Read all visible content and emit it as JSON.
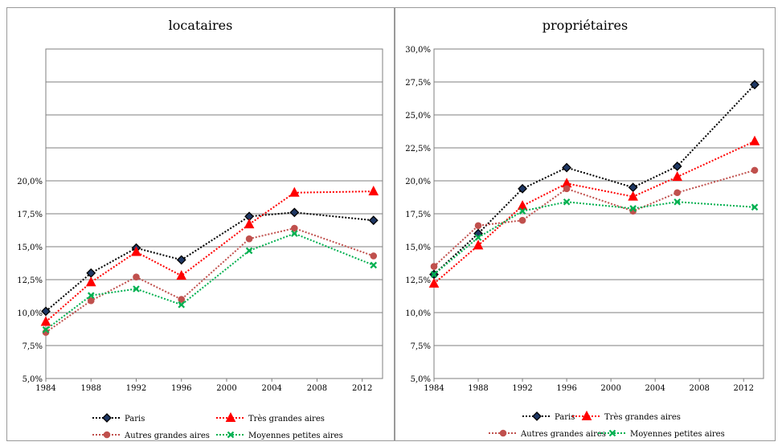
{
  "chart_data": [
    {
      "type": "line",
      "title": "locataires",
      "x": [
        1984,
        1988,
        1992,
        1996,
        2002,
        2006,
        2013
      ],
      "xticks": [
        "1984",
        "1988",
        "1992",
        "1996",
        "2000",
        "2004",
        "2008",
        "2012"
      ],
      "xlim": [
        1984,
        2013.8
      ],
      "ylim": [
        5,
        30
      ],
      "yticks": [
        "5,0%",
        "7,5%",
        "10,0%",
        "12,5%",
        "15,0%",
        "17,5%",
        "20,0%"
      ],
      "ytick_values": [
        5,
        7.5,
        10,
        12.5,
        15,
        17.5,
        20
      ],
      "gridlines": [
        5,
        7.5,
        10,
        12.5,
        15,
        17.5,
        20,
        22.5,
        25,
        27.5,
        30
      ],
      "legend_position": "bottom",
      "series": [
        {
          "name": "Paris",
          "color": "#000000",
          "marker": "diamond",
          "values": [
            10.1,
            13.0,
            14.9,
            14.0,
            17.3,
            17.6,
            17.0
          ]
        },
        {
          "name": "Très grandes aires",
          "color": "#ff0000",
          "marker": "triangle",
          "values": [
            9.3,
            12.3,
            14.6,
            12.8,
            16.7,
            19.1,
            19.2
          ]
        },
        {
          "name": "Autres grandes aires",
          "color": "#c0504d",
          "marker": "circle",
          "values": [
            8.5,
            10.9,
            12.7,
            11.0,
            15.6,
            16.4,
            14.3
          ]
        },
        {
          "name": "Moyennes petites aires",
          "color": "#00b050",
          "marker": "x",
          "values": [
            8.7,
            11.3,
            11.8,
            10.6,
            14.7,
            16.0,
            13.6
          ]
        }
      ]
    },
    {
      "type": "line",
      "title": "propriétaires",
      "x": [
        1984,
        1988,
        1992,
        1996,
        2002,
        2006,
        2013
      ],
      "xticks": [
        "1984",
        "1988",
        "1992",
        "1996",
        "2000",
        "2004",
        "2008",
        "2012"
      ],
      "xlim": [
        1984,
        2013.8
      ],
      "ylim": [
        5,
        30
      ],
      "yticks": [
        "5,0%",
        "7,5%",
        "10,0%",
        "12,5%",
        "15,0%",
        "17,5%",
        "20,0%",
        "22,5%",
        "25,0%",
        "27,5%",
        "30,0%"
      ],
      "ytick_values": [
        5,
        7.5,
        10,
        12.5,
        15,
        17.5,
        20,
        22.5,
        25,
        27.5,
        30
      ],
      "gridlines": [
        5,
        7.5,
        10,
        12.5,
        15,
        17.5,
        20,
        22.5,
        25,
        27.5,
        30
      ],
      "legend_position": "bottom",
      "series": [
        {
          "name": "Paris",
          "color": "#000000",
          "marker": "diamond",
          "values": [
            12.9,
            16.0,
            19.4,
            21.0,
            19.5,
            21.1,
            27.3
          ]
        },
        {
          "name": "Très grandes aires",
          "color": "#ff0000",
          "marker": "triangle",
          "values": [
            12.2,
            15.1,
            18.1,
            19.8,
            18.8,
            20.3,
            23.0
          ]
        },
        {
          "name": "Autres grandes aires",
          "color": "#c0504d",
          "marker": "circle",
          "values": [
            13.5,
            16.6,
            17.0,
            19.4,
            17.7,
            19.1,
            20.8
          ]
        },
        {
          "name": "Moyennes petites aires",
          "color": "#00b050",
          "marker": "x",
          "values": [
            12.9,
            15.7,
            17.7,
            18.4,
            17.9,
            18.4,
            18.0
          ]
        }
      ]
    }
  ]
}
